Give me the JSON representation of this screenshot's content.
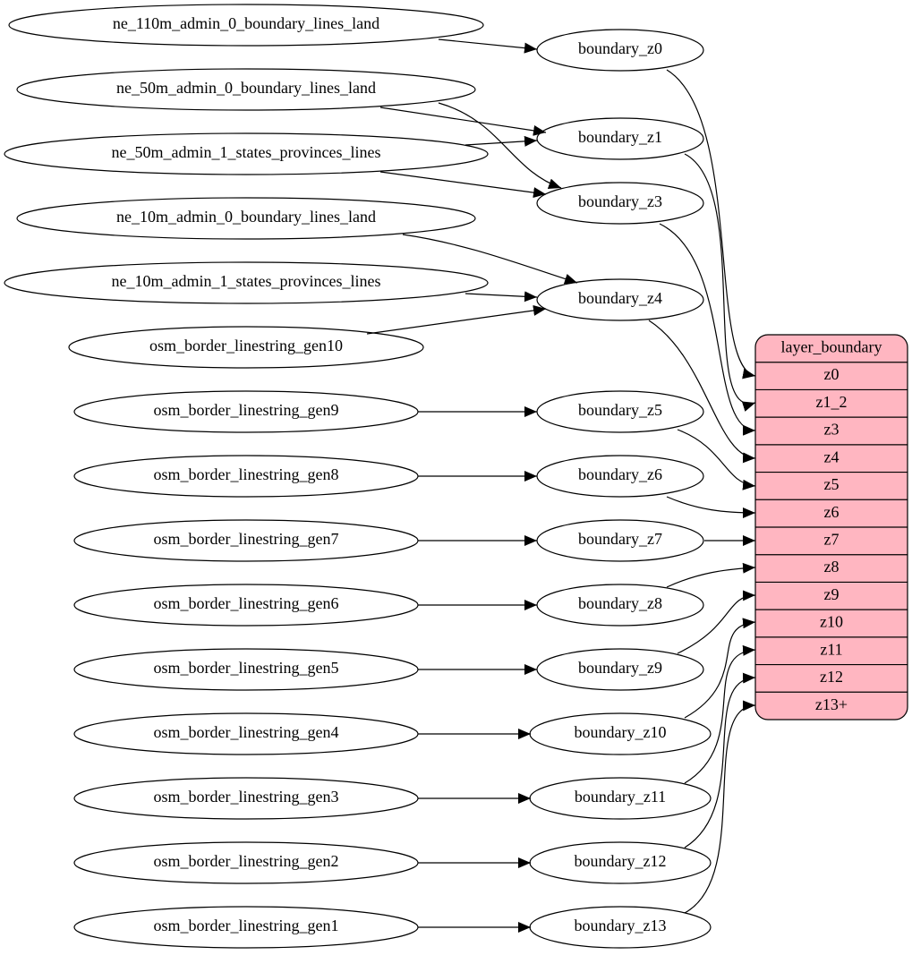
{
  "sources": [
    "ne_110m_admin_0_boundary_lines_land",
    "ne_50m_admin_0_boundary_lines_land",
    "ne_50m_admin_1_states_provinces_lines",
    "ne_10m_admin_0_boundary_lines_land",
    "ne_10m_admin_1_states_provinces_lines",
    "osm_border_linestring_gen10",
    "osm_border_linestring_gen9",
    "osm_border_linestring_gen8",
    "osm_border_linestring_gen7",
    "osm_border_linestring_gen6",
    "osm_border_linestring_gen5",
    "osm_border_linestring_gen4",
    "osm_border_linestring_gen3",
    "osm_border_linestring_gen2",
    "osm_border_linestring_gen1"
  ],
  "tables": [
    "boundary_z0",
    "boundary_z1",
    "boundary_z3",
    "boundary_z4",
    "boundary_z5",
    "boundary_z6",
    "boundary_z7",
    "boundary_z8",
    "boundary_z9",
    "boundary_z10",
    "boundary_z11",
    "boundary_z12",
    "boundary_z13"
  ],
  "layer": {
    "title": "layer_boundary",
    "fields": [
      "z0",
      "z1_2",
      "z3",
      "z4",
      "z5",
      "z6",
      "z7",
      "z8",
      "z9",
      "z10",
      "z11",
      "z12",
      "z13+"
    ]
  }
}
